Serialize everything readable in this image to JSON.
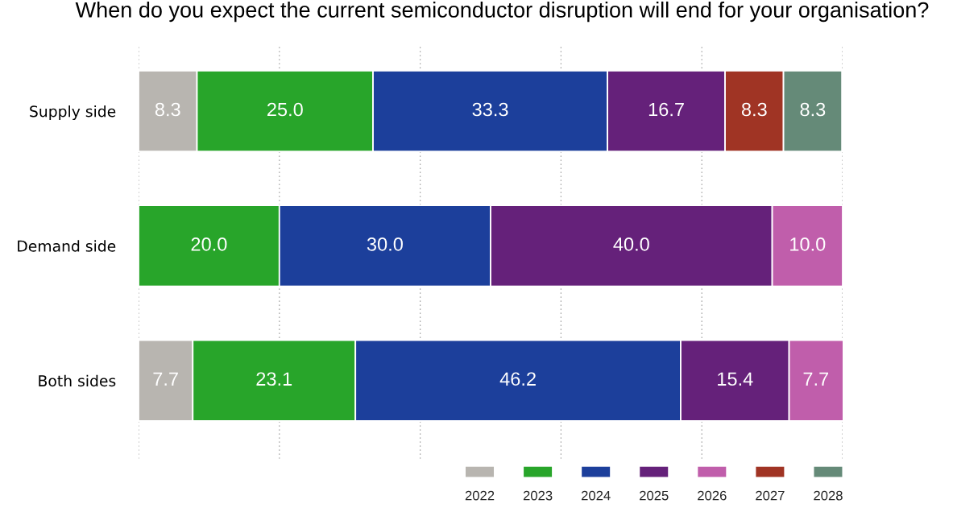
{
  "chart_data": {
    "type": "bar",
    "orientation": "horizontal",
    "stacked": true,
    "title": "When do you expect the current semiconductor disruption will end for your organisation?",
    "categories": [
      "Supply side",
      "Demand side",
      "Both sides"
    ],
    "series": [
      {
        "name": "2022",
        "color": "#b8b5b0",
        "values": [
          8.3,
          null,
          7.7
        ],
        "value_labels": [
          "8.3",
          null,
          "7.7"
        ]
      },
      {
        "name": "2023",
        "color": "#28a52a",
        "values": [
          25.0,
          20.0,
          23.1
        ],
        "value_labels": [
          "25.0",
          "20.0",
          "23.1"
        ]
      },
      {
        "name": "2024",
        "color": "#1c3f9b",
        "values": [
          33.3,
          30.0,
          46.2
        ],
        "value_labels": [
          "33.3",
          "30.0",
          "46.2"
        ]
      },
      {
        "name": "2025",
        "color": "#65217a",
        "values": [
          16.7,
          40.0,
          15.4
        ],
        "value_labels": [
          "16.7",
          "40.0",
          "15.4"
        ]
      },
      {
        "name": "2026",
        "color": "#c05eab",
        "values": [
          null,
          10.0,
          7.7
        ],
        "value_labels": [
          null,
          "10.0",
          "7.7"
        ]
      },
      {
        "name": "2027",
        "color": "#a03424",
        "values": [
          8.3,
          null,
          null
        ],
        "value_labels": [
          "8.3",
          null,
          null
        ]
      },
      {
        "name": "2028",
        "color": "#658a78",
        "values": [
          8.3,
          null,
          null
        ],
        "value_labels": [
          "8.3",
          null,
          null
        ]
      }
    ],
    "xlim": [
      0,
      100
    ],
    "xticks": [
      0,
      20,
      40,
      60,
      80,
      100
    ],
    "grid": "x",
    "legend": "bottom right",
    "tick_labels": "y"
  }
}
